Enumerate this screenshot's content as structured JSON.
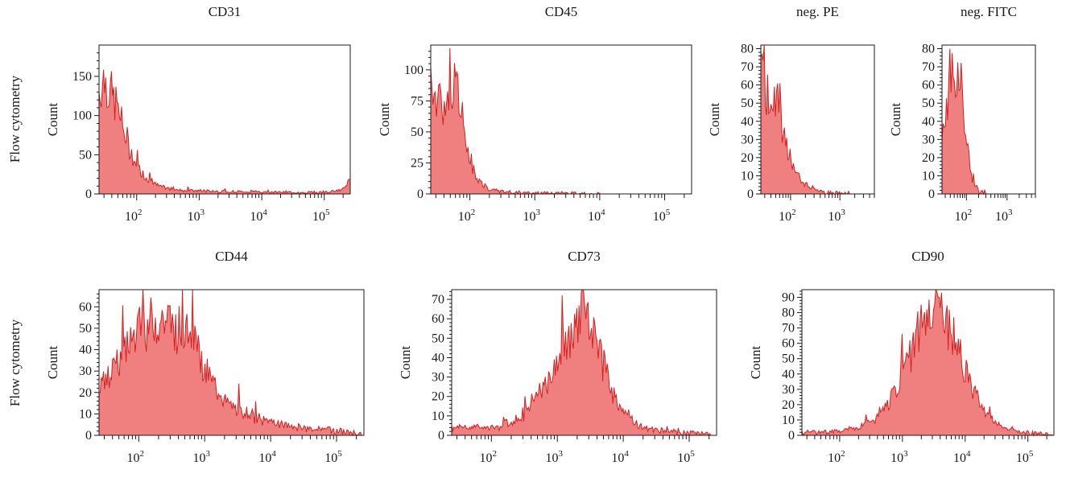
{
  "row_labels": [
    "Flow cytometry",
    "Flow cytometry"
  ],
  "colors": {
    "fill": "#f08080",
    "line": "#d42020",
    "axis": "#1a1a1a"
  },
  "chart_data": [
    {
      "type": "area",
      "title": "CD31",
      "xlabel": "",
      "ylabel": "Count",
      "xscale": "log",
      "xlim": [
        25,
        260000
      ],
      "ylim": [
        0,
        190
      ],
      "yticks": [
        0,
        50,
        100,
        150
      ],
      "xticks_decades": [
        2,
        3,
        4,
        5
      ],
      "series": [
        {
          "x": [
            25,
            30,
            40,
            50,
            60,
            80,
            100,
            150,
            200,
            300,
            500,
            1000,
            3000,
            10000,
            30000,
            100000,
            200000,
            250000
          ],
          "y": [
            130,
            150,
            125,
            110,
            85,
            55,
            35,
            20,
            12,
            7,
            5,
            4,
            3,
            3,
            2,
            2,
            5,
            18
          ]
        }
      ]
    },
    {
      "type": "area",
      "title": "CD45",
      "xlabel": "",
      "ylabel": "Count",
      "xscale": "log",
      "xlim": [
        25,
        260000
      ],
      "ylim": [
        0,
        120
      ],
      "yticks": [
        0,
        25,
        50,
        75,
        100
      ],
      "xticks_decades": [
        2,
        3,
        4,
        5
      ],
      "series": [
        {
          "x": [
            25,
            30,
            40,
            50,
            60,
            70,
            80,
            100,
            120,
            150,
            200,
            300,
            500,
            1000,
            10000,
            260000
          ],
          "y": [
            100,
            75,
            70,
            80,
            85,
            75,
            55,
            30,
            15,
            8,
            4,
            2,
            1,
            0.5,
            0,
            0
          ]
        }
      ]
    },
    {
      "type": "area",
      "title": "neg. PE",
      "xlabel": "",
      "ylabel": "Count",
      "xscale": "log",
      "xlim": [
        25,
        5000
      ],
      "ylim": [
        0,
        82
      ],
      "yticks": [
        0,
        10,
        20,
        30,
        40,
        50,
        60,
        70,
        80
      ],
      "xticks_decades": [
        2,
        3
      ],
      "series": [
        {
          "x": [
            25,
            30,
            35,
            40,
            50,
            60,
            70,
            80,
            100,
            120,
            150,
            200,
            300,
            500,
            800,
            1500,
            5000
          ],
          "y": [
            70,
            60,
            55,
            50,
            55,
            45,
            35,
            28,
            20,
            14,
            9,
            5,
            3,
            1,
            0.5,
            0,
            0
          ]
        }
      ]
    },
    {
      "type": "area",
      "title": "neg. FITC",
      "xlabel": "",
      "ylabel": "Count",
      "xscale": "log",
      "xlim": [
        25,
        5000
      ],
      "ylim": [
        0,
        82
      ],
      "yticks": [
        0,
        10,
        20,
        30,
        40,
        50,
        60,
        70,
        80
      ],
      "xticks_decades": [
        2,
        3
      ],
      "series": [
        {
          "x": [
            25,
            30,
            35,
            40,
            50,
            60,
            70,
            80,
            90,
            100,
            120,
            150,
            200,
            300,
            5000
          ],
          "y": [
            40,
            35,
            50,
            70,
            60,
            65,
            75,
            50,
            40,
            30,
            15,
            6,
            2,
            0,
            0
          ]
        }
      ]
    },
    {
      "type": "area",
      "title": "CD44",
      "xlabel": "",
      "ylabel": "Count",
      "xscale": "log",
      "xlim": [
        25,
        260000
      ],
      "ylim": [
        0,
        68
      ],
      "yticks": [
        0,
        10,
        20,
        30,
        40,
        50,
        60
      ],
      "xticks_decades": [
        2,
        3,
        4,
        5
      ],
      "series": [
        {
          "x": [
            25,
            30,
            40,
            60,
            100,
            150,
            200,
            300,
            500,
            800,
            1000,
            1500,
            2000,
            3000,
            5000,
            10000,
            20000,
            50000,
            100000,
            200000,
            260000
          ],
          "y": [
            20,
            25,
            30,
            38,
            48,
            52,
            55,
            52,
            48,
            40,
            30,
            22,
            16,
            12,
            9,
            6,
            4,
            3,
            2,
            1,
            0
          ]
        }
      ]
    },
    {
      "type": "area",
      "title": "CD73",
      "xlabel": "",
      "ylabel": "Count",
      "xscale": "log",
      "xlim": [
        25,
        260000
      ],
      "ylim": [
        0,
        75
      ],
      "yticks": [
        0,
        10,
        20,
        30,
        40,
        50,
        60,
        70
      ],
      "xticks_decades": [
        2,
        3,
        4,
        5
      ],
      "series": [
        {
          "x": [
            25,
            50,
            100,
            200,
            300,
            500,
            800,
            1000,
            1500,
            2000,
            2500,
            3000,
            4000,
            5000,
            7000,
            10000,
            15000,
            20000,
            50000,
            100000,
            260000
          ],
          "y": [
            4,
            4,
            4,
            6,
            10,
            22,
            30,
            38,
            48,
            55,
            62,
            58,
            45,
            35,
            22,
            12,
            7,
            4,
            2,
            1,
            0
          ]
        }
      ]
    },
    {
      "type": "area",
      "title": "CD90",
      "xlabel": "",
      "ylabel": "Count",
      "xscale": "log",
      "xlim": [
        25,
        260000
      ],
      "ylim": [
        0,
        95
      ],
      "yticks": [
        0,
        10,
        20,
        30,
        40,
        50,
        60,
        70,
        80,
        90
      ],
      "xticks_decades": [
        2,
        3,
        4,
        5
      ],
      "series": [
        {
          "x": [
            25,
            50,
            100,
            200,
            400,
            700,
            1000,
            1500,
            2000,
            2500,
            3000,
            4000,
            5000,
            7000,
            10000,
            15000,
            20000,
            40000,
            80000,
            150000,
            260000
          ],
          "y": [
            2,
            2,
            3,
            5,
            12,
            25,
            40,
            58,
            72,
            80,
            85,
            80,
            72,
            60,
            42,
            25,
            15,
            5,
            2,
            1,
            0
          ]
        }
      ]
    }
  ]
}
